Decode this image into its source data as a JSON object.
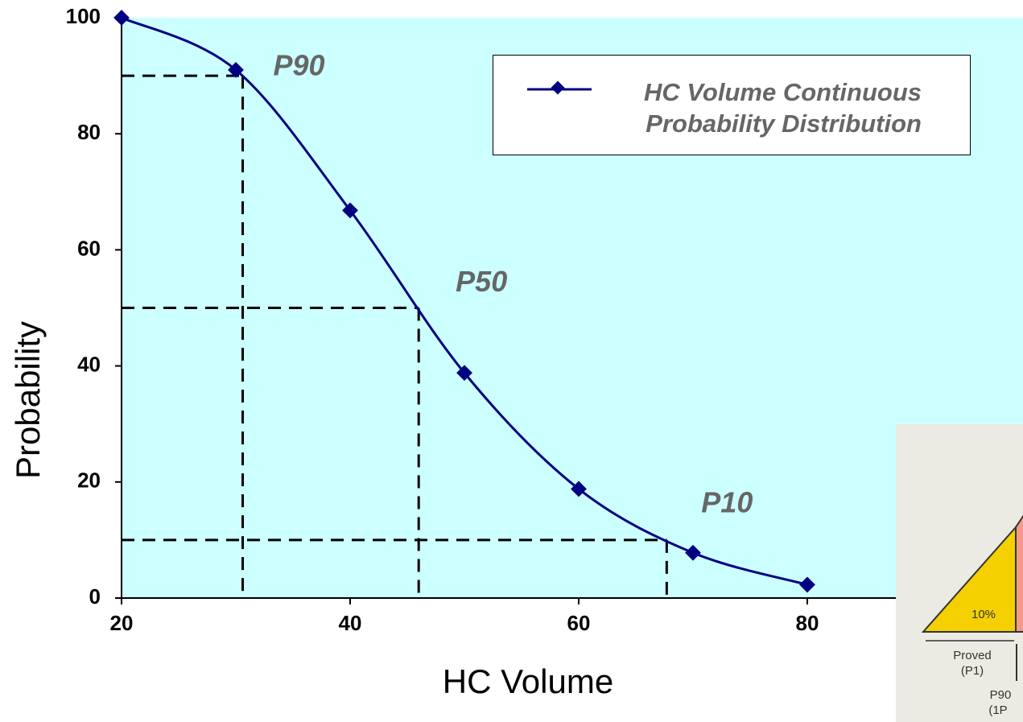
{
  "chart_data": {
    "type": "line",
    "x_label": "HC Volume",
    "y_label": "Probability",
    "series": [
      {
        "name": "HC Volume Continuous Probability Distribution",
        "color": "#000080",
        "x": [
          20,
          30,
          40,
          50,
          60,
          70,
          80
        ],
        "values": [
          100,
          91,
          66.8,
          38.8,
          18.8,
          7.8,
          2.3
        ]
      }
    ],
    "xlim": [
      20,
      100
    ],
    "ylim": [
      0,
      100
    ],
    "xticks": [
      20,
      40,
      60,
      80
    ],
    "yticks": [
      0,
      20,
      40,
      60,
      80,
      100
    ],
    "reference_lines": [
      {
        "label": "P90",
        "x": 30.6,
        "y": 90
      },
      {
        "label": "P50",
        "x": 46,
        "y": 50
      },
      {
        "label": "P10",
        "x": 67.7,
        "y": 10
      }
    ],
    "plot_background": "#ccffff",
    "legend": "top-right",
    "inset_labels": [
      "10%",
      "Proved",
      "(P1)",
      "P90",
      "(1P"
    ]
  }
}
